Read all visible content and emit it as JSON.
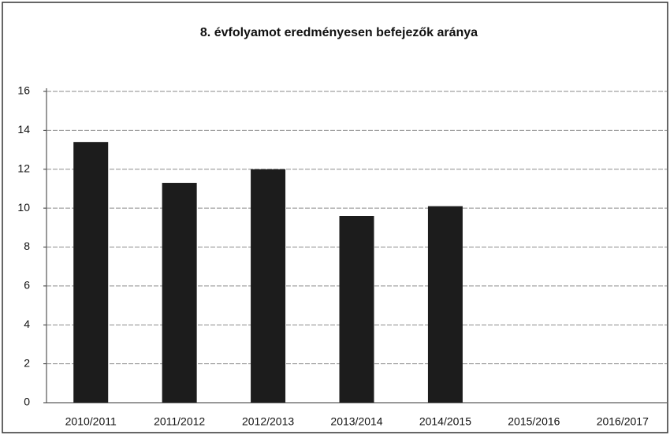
{
  "chart_data": {
    "type": "bar",
    "title": "8. évfolyamot eredményesen befejezők aránya",
    "categories": [
      "2010/2011",
      "2011/2012",
      "2012/2013",
      "2013/2014",
      "2014/2015",
      "2015/2016",
      "2016/2017"
    ],
    "values": [
      13.4,
      11.3,
      12.0,
      9.6,
      10.1,
      null,
      null
    ],
    "color": "#1c1c1c",
    "ylim": [
      0,
      16
    ],
    "yticks": [
      0,
      2,
      4,
      6,
      8,
      10,
      12,
      14,
      16
    ],
    "grid": true
  }
}
